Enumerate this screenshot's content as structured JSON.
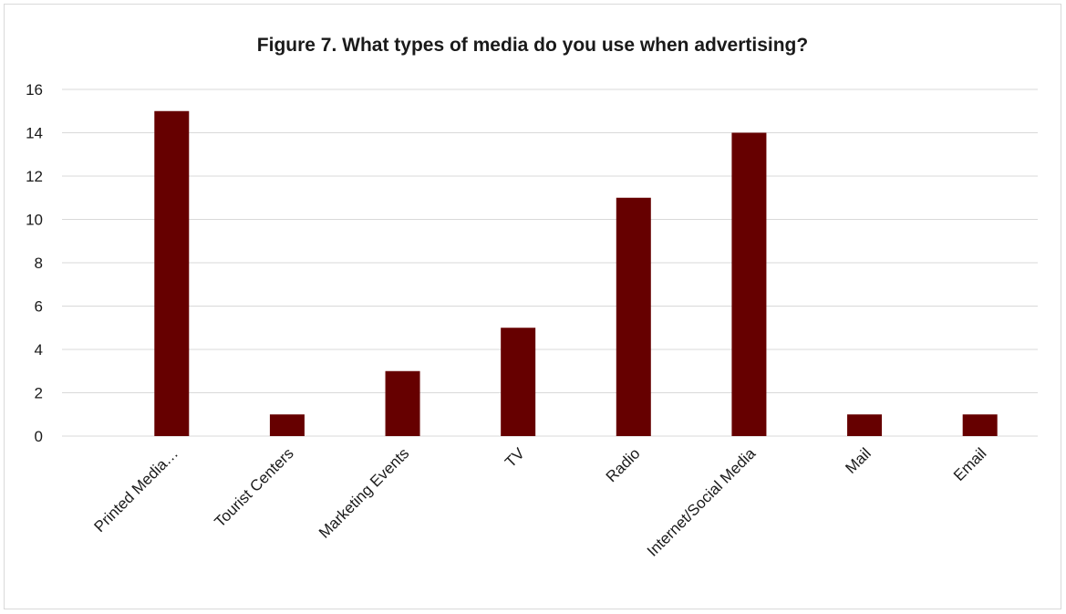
{
  "chart_data": {
    "type": "bar",
    "title": "Figure 7. What types of media do you use when advertising?",
    "xlabel": "",
    "ylabel": "",
    "categories": [
      "Printed Media…",
      "Tourist Centers",
      "Marketing Events",
      "TV",
      "Radio",
      "Internet/Social Media",
      "Mail",
      "Email"
    ],
    "values": [
      15,
      1,
      3,
      5,
      11,
      14,
      1,
      1
    ],
    "ylim": [
      0,
      16
    ],
    "yticks": [
      0,
      2,
      4,
      6,
      8,
      10,
      12,
      14,
      16
    ],
    "grid": true,
    "legend": "none",
    "bar_color": "#660000",
    "grid_color": "#d9d9d9"
  }
}
